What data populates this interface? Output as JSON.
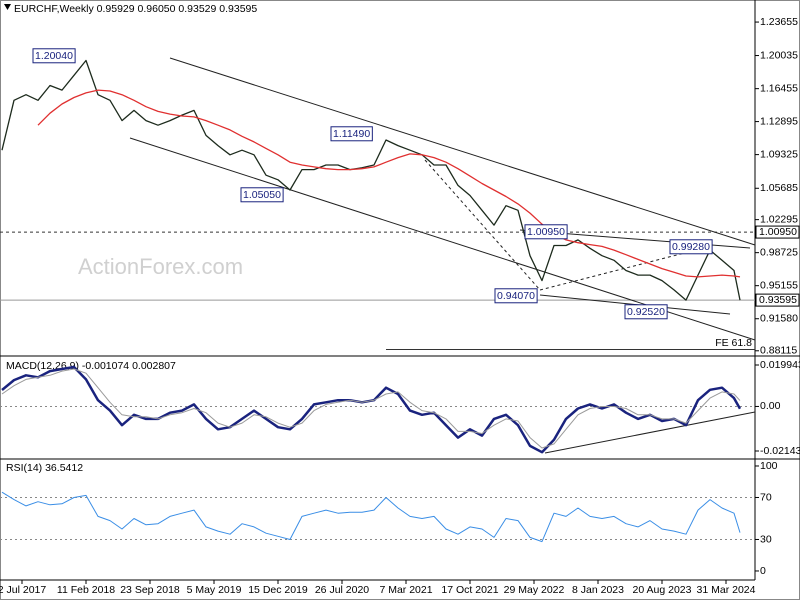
{
  "title": "EURCHF,Weekly  0.95929 0.96050 0.93529 0.93595",
  "watermark": "ActionForex.com",
  "chart_data": [
    {
      "type": "line",
      "x": [
        0,
        6,
        12,
        18,
        24,
        30,
        36,
        42,
        48,
        54,
        60,
        66,
        72,
        78,
        84,
        90,
        96,
        102,
        108,
        114,
        120,
        126,
        132,
        138,
        144,
        150,
        156,
        162,
        168,
        174,
        180,
        186,
        192,
        198,
        204,
        210,
        216,
        222,
        228,
        234,
        240,
        246,
        252,
        258,
        264,
        270,
        276,
        282,
        288,
        294,
        300,
        306,
        312,
        318,
        324,
        330,
        336,
        342,
        348,
        354,
        360,
        366,
        369
      ],
      "xlim": [
        0,
        374
      ],
      "ylim": [
        0.8766,
        1.2604
      ],
      "yticks": [
        1.23655,
        1.20035,
        1.16455,
        1.12895,
        1.09325,
        1.05685,
        1.02295,
        0.98725,
        0.95155,
        {
          "value": 0.9158,
          "label": "0.91580"
        },
        0.88115
      ],
      "series": [
        {
          "name": "Price",
          "color": "#1d2b1d",
          "values": [
            1.098,
            1.152,
            1.158,
            1.152,
            1.168,
            1.163,
            1.179,
            1.195,
            1.158,
            1.152,
            1.13,
            1.141,
            1.13,
            1.125,
            1.13,
            1.136,
            1.141,
            1.114,
            1.103,
            1.093,
            1.098,
            1.093,
            1.071,
            1.066,
            1.055,
            1.077,
            1.077,
            1.082,
            1.082,
            1.077,
            1.079,
            1.082,
            1.109,
            1.103,
            1.098,
            1.093,
            1.082,
            1.082,
            1.06,
            1.049,
            1.033,
            1.017,
            1.038,
            1.033,
            0.984,
            0.957,
            0.995,
            0.995,
            1.001,
            0.992,
            0.984,
            0.979,
            0.968,
            0.963,
            0.963,
            0.957,
            0.947,
            0.936,
            0.963,
            0.99,
            0.979,
            0.968,
            0.93595
          ]
        },
        {
          "name": "SMA 55",
          "color": "#e03030",
          "values": [
            null,
            null,
            null,
            1.125,
            1.138,
            1.148,
            1.155,
            1.16,
            1.163,
            1.162,
            1.158,
            1.152,
            1.145,
            1.14,
            1.137,
            1.135,
            1.134,
            1.13,
            1.125,
            1.12,
            1.113,
            1.107,
            1.1,
            1.093,
            1.085,
            1.082,
            1.08,
            1.078,
            1.077,
            1.077,
            1.078,
            1.08,
            1.085,
            1.09,
            1.094,
            1.093,
            1.09,
            1.085,
            1.078,
            1.07,
            1.062,
            1.055,
            1.048,
            1.04,
            1.03,
            1.018,
            1.008,
            1.001,
            0.998,
            0.996,
            0.994,
            0.99,
            0.985,
            0.98,
            0.975,
            0.97,
            0.966,
            0.962,
            0.961,
            0.962,
            0.963,
            0.962,
            0.961
          ]
        }
      ],
      "levels": [
        {
          "value": 1.0095,
          "label": "1.00950",
          "style": "dashed"
        },
        {
          "value": 0.93595,
          "label": "0.93595",
          "style": "solid"
        },
        {
          "value": 0.8826,
          "label": "FE 61.8",
          "style": "fe",
          "from": 192
        }
      ],
      "annotations": [
        "1.20040",
        "1.11490",
        "1.05050",
        "1.00950",
        "0.99280",
        "0.94070",
        "0.92520"
      ]
    },
    {
      "type": "line",
      "title": "MACD(12,26,9) -0.001074 0.002807",
      "x": [
        0,
        6,
        12,
        18,
        24,
        30,
        36,
        42,
        48,
        54,
        60,
        66,
        72,
        78,
        84,
        90,
        96,
        102,
        108,
        114,
        120,
        126,
        132,
        138,
        144,
        150,
        156,
        162,
        168,
        174,
        180,
        186,
        192,
        198,
        204,
        210,
        216,
        222,
        228,
        234,
        240,
        246,
        252,
        258,
        264,
        270,
        276,
        282,
        288,
        294,
        300,
        306,
        312,
        318,
        324,
        330,
        336,
        342,
        348,
        354,
        360,
        366,
        369
      ],
      "xlim": [
        0,
        374
      ],
      "ylim": [
        -0.0248,
        0.02379
      ],
      "yticks": [
        0.019943,
        {
          "value": 0,
          "label": "0.00"
        },
        -0.021434
      ],
      "levels": [
        0
      ],
      "series": [
        {
          "name": "MACD",
          "color": "#1a237e",
          "width": 2.5,
          "values": [
            0.0079,
            0.0127,
            0.015,
            0.014,
            0.017,
            0.018,
            0.019,
            0.013,
            0.003,
            -0.002,
            -0.009,
            -0.004,
            -0.006,
            -0.006,
            -0.003,
            -0.002,
            0.001,
            -0.006,
            -0.011,
            -0.01,
            -0.006,
            -0.002,
            -0.006,
            -0.01,
            -0.011,
            -0.006,
            0.001,
            0.002,
            0.003,
            0.003,
            0.002,
            0.003,
            0.009,
            0.006,
            -0.002,
            -0.004,
            -0.003,
            -0.009,
            -0.015,
            -0.011,
            -0.014,
            -0.006,
            -0.004,
            -0.009,
            -0.019,
            -0.022,
            -0.016,
            -0.006,
            -0.001,
            0.001,
            -0.001,
            0.001,
            -0.003,
            -0.006,
            -0.004,
            -0.007,
            -0.006,
            -0.009,
            0.003,
            0.008,
            0.009,
            0.004,
            -0.001074
          ]
        },
        {
          "name": "Signal",
          "color": "#9a9a9a",
          "width": 1,
          "values": [
            0.006,
            0.01,
            0.013,
            0.014,
            0.015,
            0.017,
            0.018,
            0.016,
            0.009,
            0.002,
            -0.004,
            -0.005,
            -0.005,
            -0.006,
            -0.004,
            -0.003,
            -0.001,
            -0.003,
            -0.008,
            -0.01,
            -0.008,
            -0.004,
            -0.005,
            -0.008,
            -0.01,
            -0.008,
            -0.002,
            0.001,
            0.002,
            0.003,
            0.002,
            0.003,
            0.006,
            0.007,
            0.002,
            -0.002,
            -0.003,
            -0.006,
            -0.012,
            -0.012,
            -0.013,
            -0.009,
            -0.006,
            -0.007,
            -0.015,
            -0.02,
            -0.018,
            -0.011,
            -0.004,
            -0.001,
            0.0,
            0.0,
            -0.001,
            -0.004,
            -0.004,
            -0.006,
            -0.006,
            -0.008,
            -0.002,
            0.004,
            0.007,
            0.006,
            0.002807
          ]
        }
      ]
    },
    {
      "type": "line",
      "title": "RSI(14) 36.5412",
      "x": [
        0,
        6,
        12,
        18,
        24,
        30,
        36,
        42,
        48,
        54,
        60,
        66,
        72,
        78,
        84,
        90,
        96,
        102,
        108,
        114,
        120,
        126,
        132,
        138,
        144,
        150,
        156,
        162,
        168,
        174,
        180,
        186,
        192,
        198,
        204,
        210,
        216,
        222,
        228,
        234,
        240,
        246,
        252,
        258,
        264,
        270,
        276,
        282,
        288,
        294,
        300,
        306,
        312,
        318,
        324,
        330,
        336,
        342,
        348,
        354,
        360,
        366,
        369
      ],
      "xlim": [
        0,
        374
      ],
      "ylim": [
        -8.6,
        105.7
      ],
      "yticks": [
        100,
        70,
        30,
        0
      ],
      "levels": [
        70,
        30
      ],
      "xticks": [
        {
          "value": 10,
          "label": "2 Jul 2017"
        },
        {
          "value": 42,
          "label": "11 Feb 2018"
        },
        {
          "value": 74,
          "label": "23 Sep 2018"
        },
        {
          "value": 106,
          "label": "5 May 2019"
        },
        {
          "value": 138,
          "label": "15 Dec 2019"
        },
        {
          "value": 170,
          "label": "26 Jul 2020"
        },
        {
          "value": 202,
          "label": "7 Mar 2021"
        },
        {
          "value": 234,
          "label": "17 Oct 2021"
        },
        {
          "value": 266,
          "label": "29 May 2022"
        },
        {
          "value": 298,
          "label": "8 Jan 2023"
        },
        {
          "value": 330,
          "label": "20 Aug 2023"
        },
        {
          "value": 362,
          "label": "31 Mar 2024"
        }
      ],
      "series": [
        {
          "name": "RSI",
          "color": "#3a8ee6",
          "width": 1,
          "values": [
            75,
            68,
            62,
            66,
            63,
            64,
            70,
            72,
            52,
            48,
            40,
            50,
            44,
            45,
            52,
            55,
            58,
            42,
            38,
            35,
            45,
            42,
            36,
            33,
            30,
            52,
            55,
            58,
            55,
            56,
            56,
            58,
            70,
            60,
            52,
            50,
            52,
            40,
            35,
            42,
            40,
            32,
            50,
            48,
            32,
            28,
            55,
            52,
            60,
            52,
            50,
            52,
            45,
            42,
            48,
            40,
            38,
            35,
            58,
            68,
            60,
            55,
            36.5412
          ]
        }
      ]
    }
  ]
}
